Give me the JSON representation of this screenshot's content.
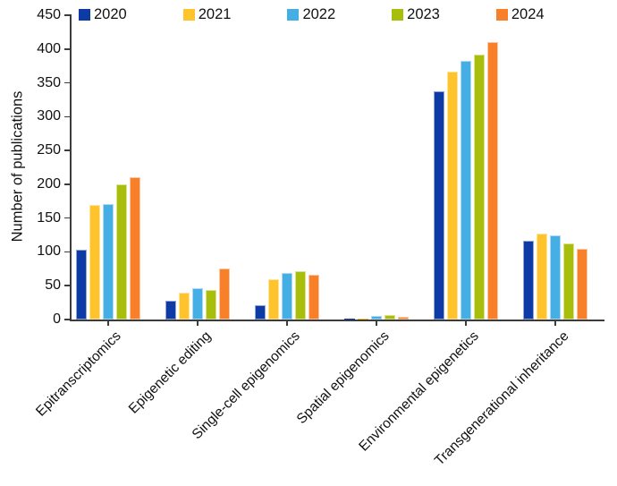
{
  "chart_data": {
    "type": "bar",
    "title": "",
    "xlabel": "",
    "ylabel": "Number of publications",
    "ylim": [
      0,
      450
    ],
    "ytick_step": 50,
    "grid": false,
    "legend_position": "top",
    "axis_color": "#3c3c3c",
    "categories": [
      "Epitranscriptomics",
      "Epigenetic editing",
      "Single-cell epigenomics",
      "Spatial epigenomics",
      "Environmental epigenetics",
      "Transgenerational inheritance"
    ],
    "series": [
      {
        "name": "2020",
        "color": "#0d3aa5",
        "values": [
          103,
          28,
          21,
          1,
          338,
          117
        ]
      },
      {
        "name": "2021",
        "color": "#ffc32b",
        "values": [
          170,
          40,
          60,
          1,
          367,
          127
        ]
      },
      {
        "name": "2022",
        "color": "#45afe5",
        "values": [
          171,
          46,
          69,
          5,
          382,
          124
        ]
      },
      {
        "name": "2023",
        "color": "#a9be0b",
        "values": [
          200,
          44,
          72,
          6,
          392,
          113
        ]
      },
      {
        "name": "2024",
        "color": "#f8802b",
        "values": [
          210,
          76,
          66,
          4,
          410,
          104
        ]
      }
    ]
  }
}
